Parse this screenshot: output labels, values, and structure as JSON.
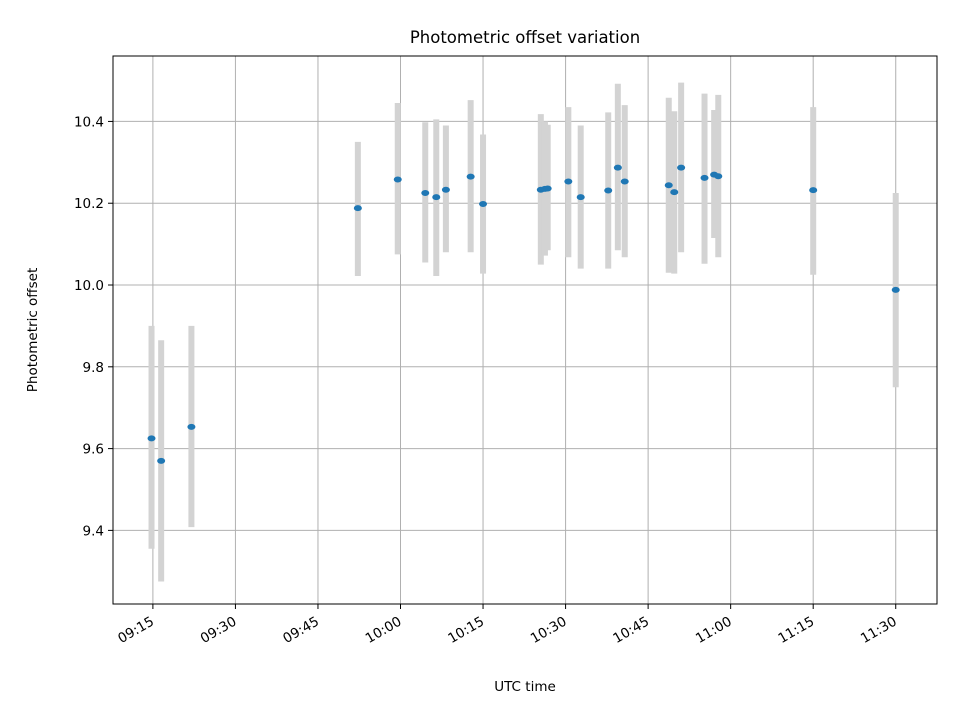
{
  "chart_data": {
    "type": "scatter",
    "title": "Photometric offset variation",
    "xlabel": "UTC time",
    "ylabel": "Photometric offset",
    "x_ticks": [
      "09:15",
      "09:30",
      "09:45",
      "10:00",
      "10:15",
      "10:30",
      "10:45",
      "11:00",
      "11:15",
      "11:30"
    ],
    "y_ticks": [
      "9.4",
      "9.6",
      "9.8",
      "10.0",
      "10.2",
      "10.4"
    ],
    "xlim": [
      "09:07:45",
      "11:37:30"
    ],
    "ylim": [
      9.22,
      10.56
    ],
    "grid": true,
    "colors": {
      "points": "#1f77b4",
      "error_bars": "#d3d3d3",
      "grid": "#b0b0b0"
    },
    "points": [
      {
        "x": "09:14:45",
        "y": 9.625,
        "y_low": 9.355,
        "y_high": 9.9
      },
      {
        "x": "09:16:30",
        "y": 9.57,
        "y_low": 9.275,
        "y_high": 9.865
      },
      {
        "x": "09:22:00",
        "y": 9.653,
        "y_low": 9.408,
        "y_high": 9.9
      },
      {
        "x": "09:52:15",
        "y": 10.188,
        "y_low": 10.022,
        "y_high": 10.35
      },
      {
        "x": "09:59:30",
        "y": 10.258,
        "y_low": 10.075,
        "y_high": 10.445
      },
      {
        "x": "10:04:30",
        "y": 10.225,
        "y_low": 10.055,
        "y_high": 10.398
      },
      {
        "x": "10:06:30",
        "y": 10.215,
        "y_low": 10.022,
        "y_high": 10.405
      },
      {
        "x": "10:08:15",
        "y": 10.233,
        "y_low": 10.08,
        "y_high": 10.39
      },
      {
        "x": "10:12:45",
        "y": 10.265,
        "y_low": 10.08,
        "y_high": 10.452
      },
      {
        "x": "10:15:00",
        "y": 10.198,
        "y_low": 10.028,
        "y_high": 10.368
      },
      {
        "x": "10:25:30",
        "y": 10.233,
        "y_low": 10.05,
        "y_high": 10.418
      },
      {
        "x": "10:26:15",
        "y": 10.235,
        "y_low": 10.072,
        "y_high": 10.4
      },
      {
        "x": "10:26:45",
        "y": 10.236,
        "y_low": 10.085,
        "y_high": 10.392
      },
      {
        "x": "10:30:30",
        "y": 10.253,
        "y_low": 10.068,
        "y_high": 10.435
      },
      {
        "x": "10:32:45",
        "y": 10.215,
        "y_low": 10.04,
        "y_high": 10.39
      },
      {
        "x": "10:37:45",
        "y": 10.231,
        "y_low": 10.04,
        "y_high": 10.422
      },
      {
        "x": "10:39:30",
        "y": 10.287,
        "y_low": 10.085,
        "y_high": 10.492
      },
      {
        "x": "10:40:45",
        "y": 10.253,
        "y_low": 10.068,
        "y_high": 10.44
      },
      {
        "x": "10:48:45",
        "y": 10.244,
        "y_low": 10.03,
        "y_high": 10.458
      },
      {
        "x": "10:49:45",
        "y": 10.227,
        "y_low": 10.028,
        "y_high": 10.425
      },
      {
        "x": "10:51:00",
        "y": 10.287,
        "y_low": 10.08,
        "y_high": 10.495
      },
      {
        "x": "10:55:15",
        "y": 10.262,
        "y_low": 10.052,
        "y_high": 10.468
      },
      {
        "x": "10:57:00",
        "y": 10.27,
        "y_low": 10.115,
        "y_high": 10.428
      },
      {
        "x": "10:57:45",
        "y": 10.266,
        "y_low": 10.068,
        "y_high": 10.465
      },
      {
        "x": "11:15:00",
        "y": 10.232,
        "y_low": 10.025,
        "y_high": 10.435
      },
      {
        "x": "11:30:00",
        "y": 9.988,
        "y_low": 9.75,
        "y_high": 10.225
      }
    ]
  }
}
